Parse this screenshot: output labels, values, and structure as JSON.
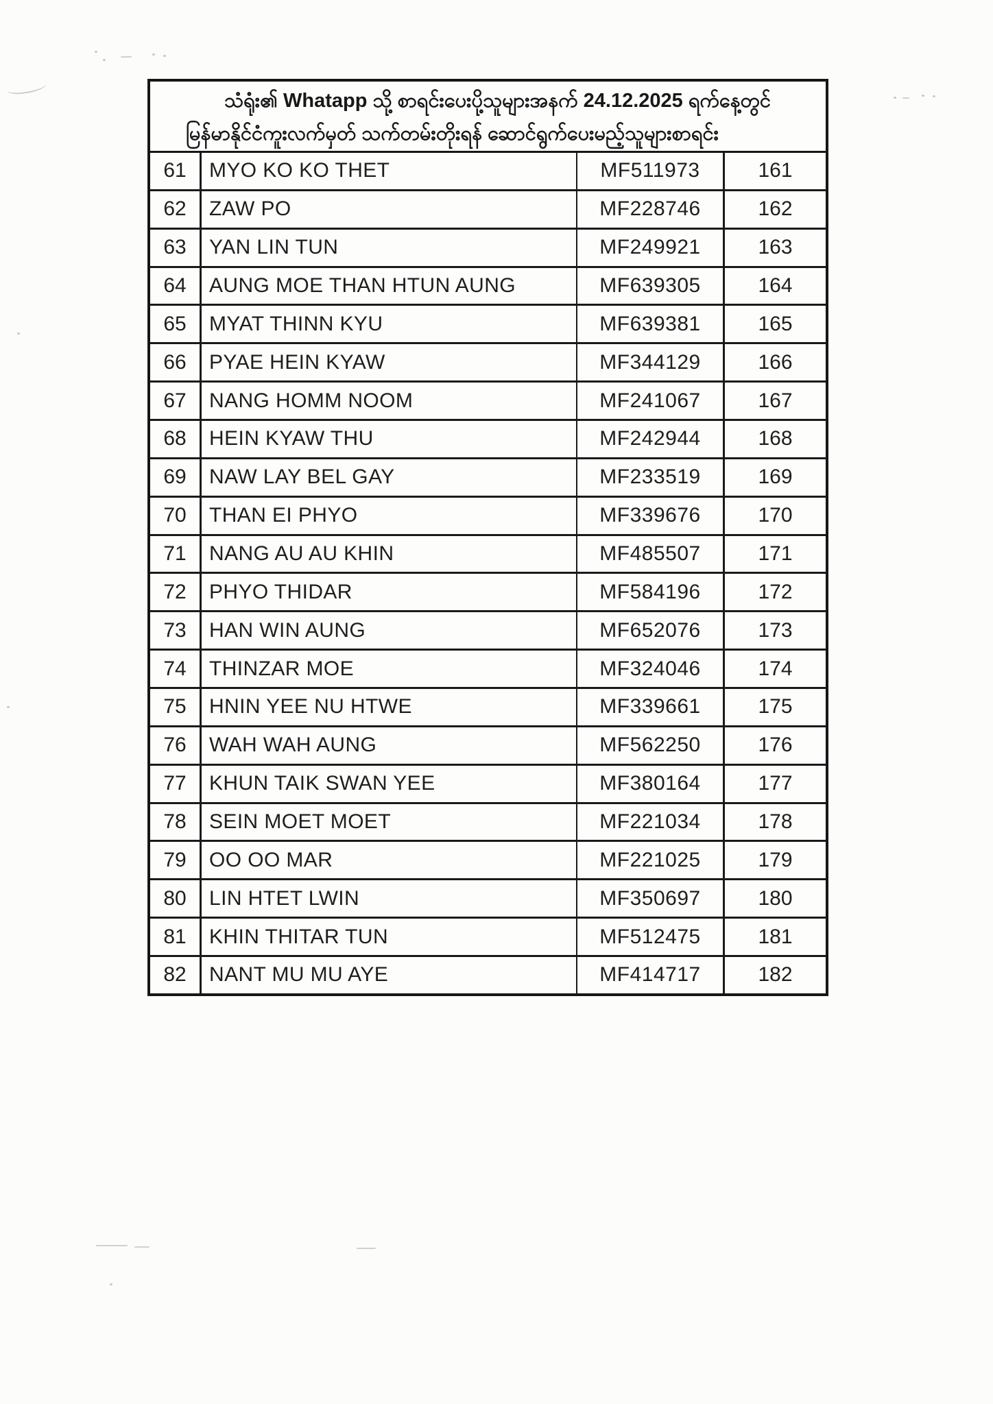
{
  "document": {
    "title_line1": "သံရုံး၏ Whatapp သို့ စာရင်းပေးပို့သူများအနက် 24.12.2025 ရက်နေ့တွင်",
    "title_line2": "မြန်မာနိုင်ငံကူးလက်မှတ် သက်တမ်းတိုးရန် ဆောင်ရွက်ပေးမည့်သူများစာရင်း"
  },
  "table": {
    "rows": [
      {
        "no": "61",
        "name": "MYO KO KO THET",
        "passport_no": "MF511973",
        "serial": "161"
      },
      {
        "no": "62",
        "name": "ZAW PO",
        "passport_no": "MF228746",
        "serial": "162"
      },
      {
        "no": "63",
        "name": "YAN LIN TUN",
        "passport_no": "MF249921",
        "serial": "163"
      },
      {
        "no": "64",
        "name": "AUNG MOE THAN HTUN AUNG",
        "passport_no": "MF639305",
        "serial": "164"
      },
      {
        "no": "65",
        "name": "MYAT THINN KYU",
        "passport_no": "MF639381",
        "serial": "165"
      },
      {
        "no": "66",
        "name": "PYAE HEIN KYAW",
        "passport_no": "MF344129",
        "serial": "166"
      },
      {
        "no": "67",
        "name": "NANG HOMM NOOM",
        "passport_no": "MF241067",
        "serial": "167"
      },
      {
        "no": "68",
        "name": "HEIN KYAW THU",
        "passport_no": "MF242944",
        "serial": "168"
      },
      {
        "no": "69",
        "name": "NAW LAY BEL GAY",
        "passport_no": "MF233519",
        "serial": "169"
      },
      {
        "no": "70",
        "name": "THAN EI PHYO",
        "passport_no": "MF339676",
        "serial": "170"
      },
      {
        "no": "71",
        "name": "NANG AU AU KHIN",
        "passport_no": "MF485507",
        "serial": "171"
      },
      {
        "no": "72",
        "name": "PHYO THIDAR",
        "passport_no": "MF584196",
        "serial": "172"
      },
      {
        "no": "73",
        "name": "HAN WIN AUNG",
        "passport_no": "MF652076",
        "serial": "173"
      },
      {
        "no": "74",
        "name": "THINZAR MOE",
        "passport_no": "MF324046",
        "serial": "174"
      },
      {
        "no": "75",
        "name": "HNIN YEE NU HTWE",
        "passport_no": "MF339661",
        "serial": "175"
      },
      {
        "no": "76",
        "name": "WAH WAH AUNG",
        "passport_no": "MF562250",
        "serial": "176"
      },
      {
        "no": "77",
        "name": "KHUN TAIK SWAN YEE",
        "passport_no": "MF380164",
        "serial": "177"
      },
      {
        "no": "78",
        "name": "SEIN MOET MOET",
        "passport_no": "MF221034",
        "serial": "178"
      },
      {
        "no": "79",
        "name": "OO OO MAR",
        "passport_no": "MF221025",
        "serial": "179"
      },
      {
        "no": "80",
        "name": "LIN HTET LWIN",
        "passport_no": "MF350697",
        "serial": "180"
      },
      {
        "no": "81",
        "name": "KHIN THITAR TUN",
        "passport_no": "MF512475",
        "serial": "181"
      },
      {
        "no": "82",
        "name": "NANT MU MU AYE",
        "passport_no": "MF414717",
        "serial": "182"
      }
    ]
  }
}
